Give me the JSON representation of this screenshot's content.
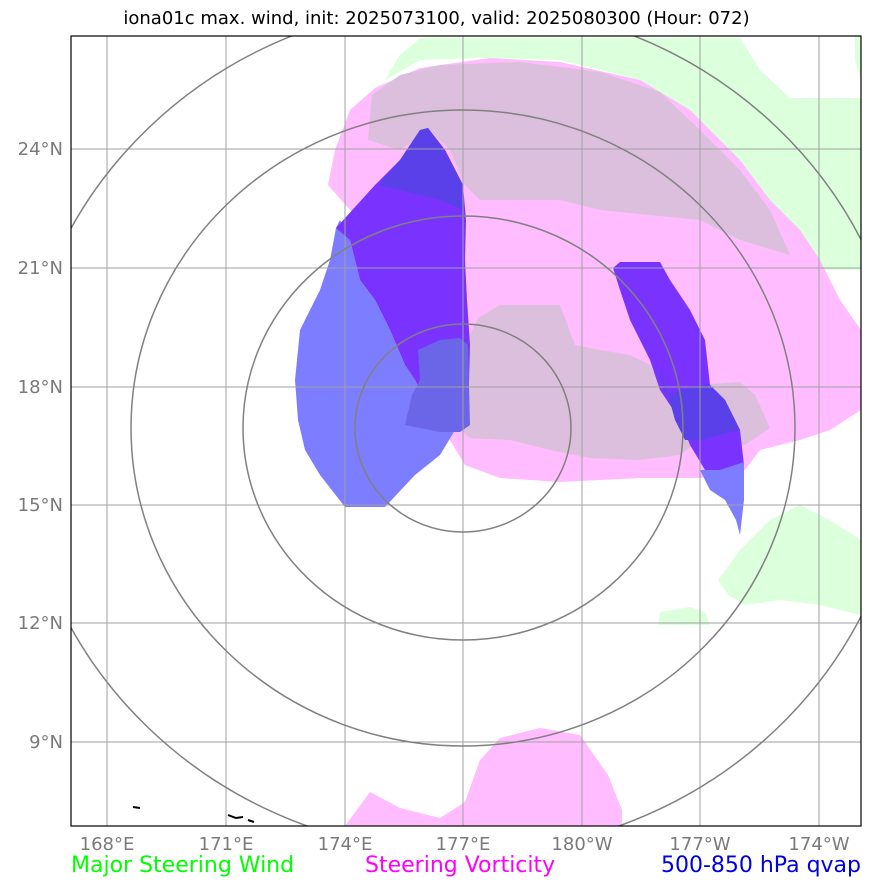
{
  "title": "iona01c max. wind, init: 2025073100, valid: 2025080300 (Hour: 072)",
  "x_ticks": [
    "168°E",
    "171°E",
    "174°E",
    "177°E",
    "180°W",
    "177°W",
    "174°W"
  ],
  "y_ticks": [
    "24°N",
    "21°N",
    "18°N",
    "15°N",
    "12°N",
    "9°N"
  ],
  "legend": [
    {
      "label": "Major Steering Wind",
      "color": "#00ff00"
    },
    {
      "label": "Steering Vorticity",
      "color": "#ff00ff"
    },
    {
      "label": "500-850 hPa qvap",
      "color": "#0000dd"
    }
  ],
  "colors": {
    "steering_wind": "#dcffdc",
    "vorticity": "#ffbcff",
    "qvap": "#7d7dff",
    "qvap_dark": "#7a33ff",
    "range_rings": "#808080",
    "gridlines": "#a0a0a0"
  }
}
